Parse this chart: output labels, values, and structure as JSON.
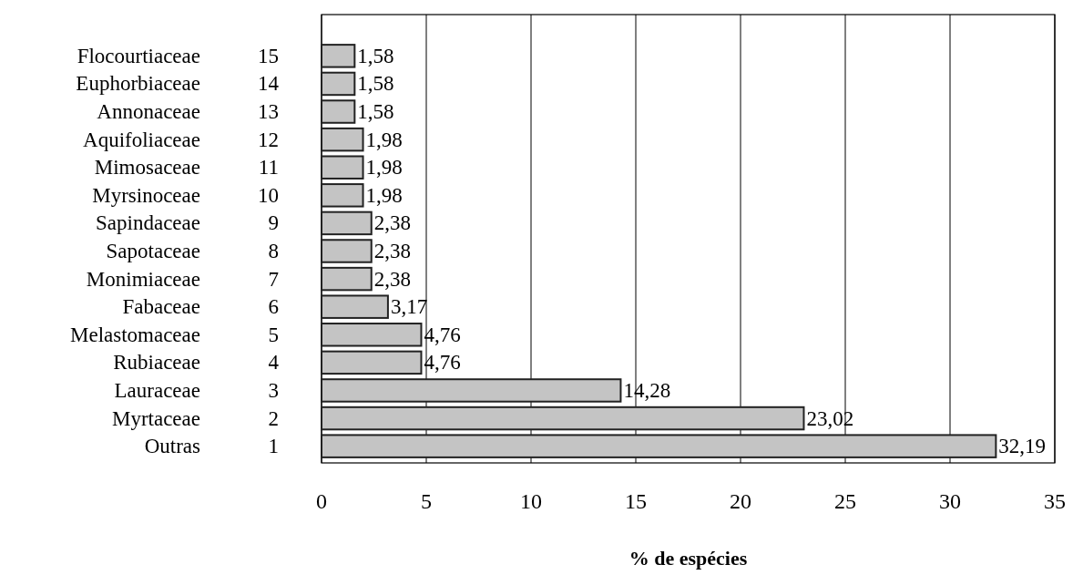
{
  "chart_data": {
    "type": "bar",
    "orientation": "horizontal",
    "xlabel": "% de espécies",
    "categories": [
      "Flocourtiaceae 15",
      "Euphorbiaceae 14",
      "Annonaceae 13",
      "Aquifoliaceae 12",
      "Mimosaceae 11",
      "Myrsinoceae 10",
      "Sapindaceae 9",
      "Sapotaceae 8",
      "Monimiaceae 7",
      "Fabaceae 6",
      "Melastomaceae 5",
      "Rubiaceae 4",
      "Lauraceae 3",
      "Myrtaceae 2",
      "Outras 1"
    ],
    "values": [
      1.58,
      1.58,
      1.58,
      1.98,
      1.98,
      1.98,
      2.38,
      2.38,
      2.38,
      3.17,
      4.76,
      4.76,
      14.28,
      23.02,
      32.19
    ],
    "value_labels": [
      "1,58",
      "1,58",
      "1,58",
      "1,98",
      "1,98",
      "1,98",
      "2,38",
      "2,38",
      "2,38",
      "3,17",
      "4,76",
      "4,76",
      "14,28",
      "23,02",
      "32,19"
    ],
    "color": "#c4c4c4",
    "xlim": [
      0,
      35
    ],
    "xticks": [
      0,
      5,
      10,
      15,
      20,
      25,
      30,
      35
    ],
    "grid": "x"
  }
}
